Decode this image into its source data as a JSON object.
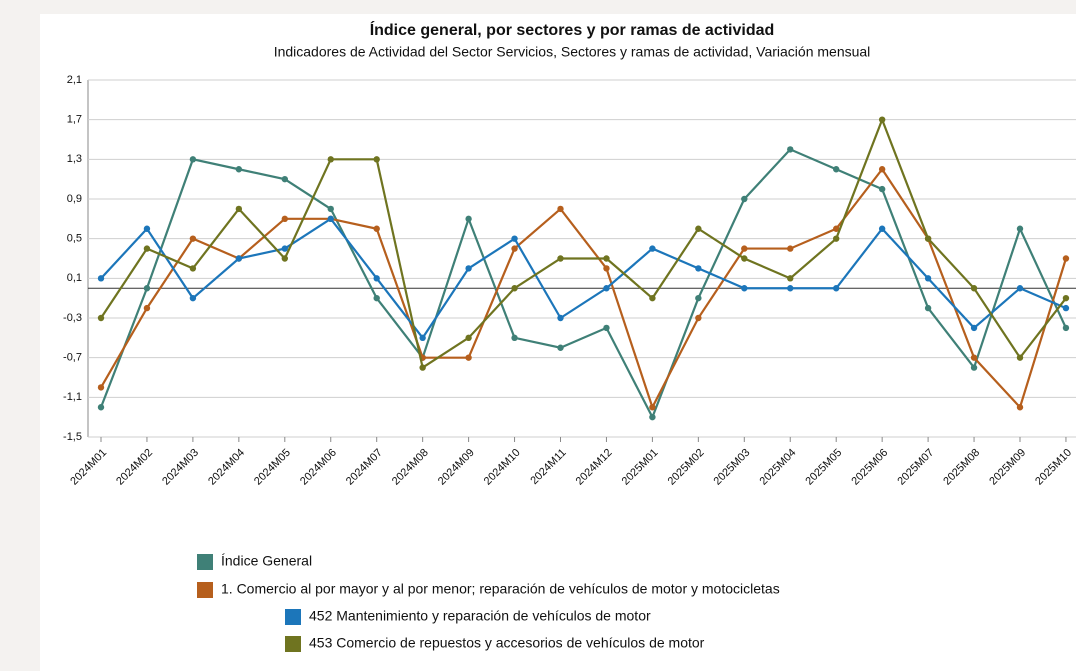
{
  "chart_data": {
    "type": "line",
    "title": "Índice general, por sectores y por ramas de actividad",
    "subtitle": "Indicadores de Actividad del Sector Servicios, Sectores y ramas de actividad, Variación mensual",
    "categories": [
      "2024M01",
      "2024M02",
      "2024M03",
      "2024M04",
      "2024M05",
      "2024M06",
      "2024M07",
      "2024M08",
      "2024M09",
      "2024M10",
      "2024M11",
      "2024M12",
      "2025M01",
      "2025M02",
      "2025M03",
      "2025M04",
      "2025M05",
      "2025M06",
      "2025M07",
      "2025M08",
      "2025M09",
      "2025M10"
    ],
    "series": [
      {
        "name": "Índice General",
        "color": "#3f8077",
        "values": [
          -1.2,
          0.0,
          1.3,
          1.2,
          1.1,
          0.8,
          -0.1,
          -0.7,
          0.7,
          -0.5,
          -0.6,
          -0.4,
          -1.3,
          -0.1,
          0.9,
          1.4,
          1.2,
          1.0,
          -0.2,
          -0.8,
          0.6,
          -0.4
        ]
      },
      {
        "name": "1. Comercio al por mayor y al por menor; reparación de vehículos de motor y motocicletas",
        "color": "#b65f1d",
        "values": [
          -1.0,
          -0.2,
          0.5,
          0.3,
          0.7,
          0.7,
          0.6,
          -0.7,
          -0.7,
          0.4,
          0.8,
          0.2,
          -1.2,
          -0.3,
          0.4,
          0.4,
          0.6,
          1.2,
          0.5,
          -0.7,
          -1.2,
          0.3
        ]
      },
      {
        "name": "452 Mantenimiento y reparación de vehículos de motor",
        "color": "#1c76ba",
        "values": [
          0.1,
          0.6,
          -0.1,
          0.3,
          0.4,
          0.7,
          0.1,
          -0.5,
          0.2,
          0.5,
          -0.3,
          0.0,
          0.4,
          0.2,
          0.0,
          0.0,
          0.0,
          0.6,
          0.1,
          -0.4,
          0.0,
          -0.2
        ]
      },
      {
        "name": "453 Comercio de repuestos y accesorios de vehículos de motor",
        "color": "#6f7420",
        "values": [
          -0.3,
          0.4,
          0.2,
          0.8,
          0.3,
          1.3,
          1.3,
          -0.8,
          -0.5,
          0.0,
          0.3,
          0.3,
          -0.1,
          0.6,
          0.3,
          0.1,
          0.5,
          1.7,
          0.5,
          0.0,
          -0.7,
          -0.1
        ]
      }
    ],
    "ylim": [
      -1.5,
      2.1
    ],
    "yticks": [
      {
        "value": -1.5,
        "label": "-1,5"
      },
      {
        "value": -1.1,
        "label": "-1,1"
      },
      {
        "value": -0.7,
        "label": "-0,7"
      },
      {
        "value": -0.3,
        "label": "-0,3"
      },
      {
        "value": 0.1,
        "label": "0,1"
      },
      {
        "value": 0.5,
        "label": "0,5"
      },
      {
        "value": 0.9,
        "label": "0,9"
      },
      {
        "value": 1.3,
        "label": "1,3"
      },
      {
        "value": 1.7,
        "label": "1,7"
      },
      {
        "value": 2.1,
        "label": "2,1"
      }
    ],
    "grid": true
  }
}
